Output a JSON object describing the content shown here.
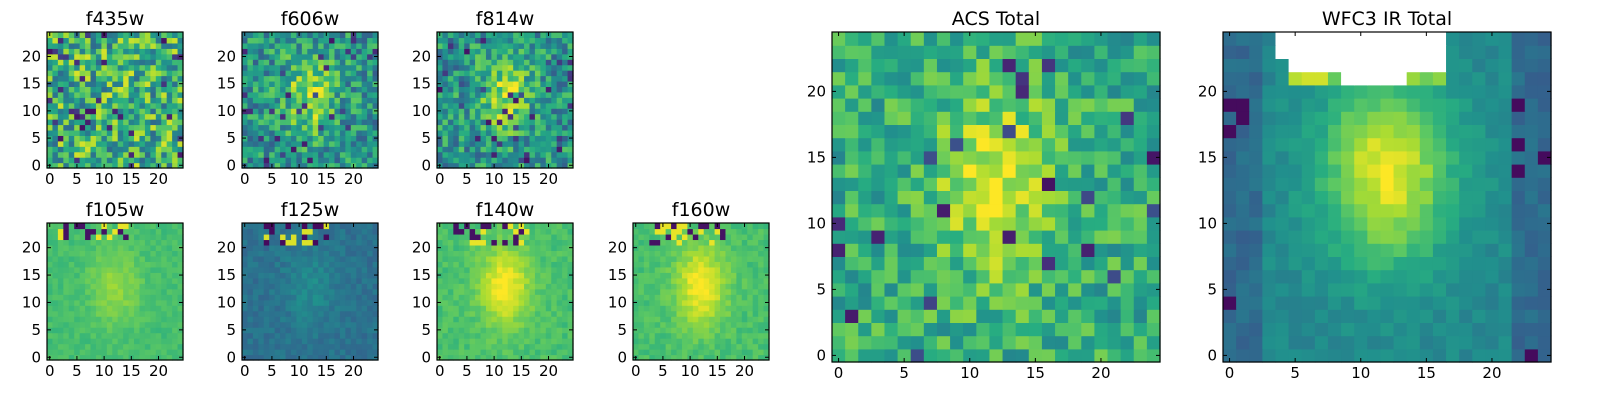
{
  "figure": {
    "background": "#ffffff",
    "colormap": "viridis"
  },
  "chart_data": [
    {
      "type": "heatmap",
      "title": "f435w",
      "xticks": [
        "0",
        "5",
        "10",
        "15",
        "20"
      ],
      "yticks": [
        "0",
        "5",
        "10",
        "15",
        "20"
      ],
      "xlim": [
        -0.5,
        24.5
      ],
      "ylim": [
        -0.5,
        24.5
      ],
      "grid": false,
      "pattern": "noise",
      "seed": 11
    },
    {
      "type": "heatmap",
      "title": "f606w",
      "xticks": [
        "0",
        "5",
        "10",
        "15",
        "20"
      ],
      "yticks": [
        "0",
        "5",
        "10",
        "15",
        "20"
      ],
      "xlim": [
        -0.5,
        24.5
      ],
      "ylim": [
        -0.5,
        24.5
      ],
      "grid": false,
      "pattern": "noise-blob",
      "seed": 23
    },
    {
      "type": "heatmap",
      "title": "f814w",
      "xticks": [
        "0",
        "5",
        "10",
        "15",
        "20"
      ],
      "yticks": [
        "0",
        "5",
        "10",
        "15",
        "20"
      ],
      "xlim": [
        -0.5,
        24.5
      ],
      "ylim": [
        -0.5,
        24.5
      ],
      "grid": false,
      "pattern": "noise-blob",
      "seed": 37
    },
    {
      "type": "heatmap",
      "title": "f105w",
      "xticks": [
        "0",
        "5",
        "10",
        "15",
        "20"
      ],
      "yticks": [
        "0",
        "5",
        "10",
        "15",
        "20"
      ],
      "xlim": [
        -0.5,
        24.5
      ],
      "ylim": [
        -0.5,
        24.5
      ],
      "grid": false,
      "pattern": "smooth-top",
      "seed": 41
    },
    {
      "type": "heatmap",
      "title": "f125w",
      "xticks": [
        "0",
        "5",
        "10",
        "15",
        "20"
      ],
      "yticks": [
        "0",
        "5",
        "10",
        "15",
        "20"
      ],
      "xlim": [
        -0.5,
        24.5
      ],
      "ylim": [
        -0.5,
        24.5
      ],
      "grid": false,
      "pattern": "smooth-dark-top",
      "seed": 53
    },
    {
      "type": "heatmap",
      "title": "f140w",
      "xticks": [
        "0",
        "5",
        "10",
        "15",
        "20"
      ],
      "yticks": [
        "0",
        "5",
        "10",
        "15",
        "20"
      ],
      "xlim": [
        -0.5,
        24.5
      ],
      "ylim": [
        -0.5,
        24.5
      ],
      "grid": false,
      "pattern": "bright-blob-top",
      "seed": 67
    },
    {
      "type": "heatmap",
      "title": "f160w",
      "xticks": [
        "0",
        "5",
        "10",
        "15",
        "20"
      ],
      "yticks": [
        "0",
        "5",
        "10",
        "15",
        "20"
      ],
      "xlim": [
        -0.5,
        24.5
      ],
      "ylim": [
        -0.5,
        24.5
      ],
      "grid": false,
      "pattern": "bright-blob-top",
      "seed": 79
    },
    {
      "type": "heatmap",
      "title": "ACS Total",
      "xticks": [
        "0",
        "5",
        "10",
        "15",
        "20"
      ],
      "yticks": [
        "0",
        "5",
        "10",
        "15",
        "20"
      ],
      "xlim": [
        -0.5,
        24.5
      ],
      "ylim": [
        -0.5,
        24.5
      ],
      "grid": false,
      "pattern": "acs-total",
      "seed": 97
    },
    {
      "type": "heatmap",
      "title": "WFC3 IR Total",
      "xticks": [
        "0",
        "5",
        "10",
        "15",
        "20"
      ],
      "yticks": [
        "0",
        "5",
        "10",
        "15",
        "20"
      ],
      "xlim": [
        -0.5,
        24.5
      ],
      "ylim": [
        -0.5,
        24.5
      ],
      "grid": false,
      "pattern": "ir-total",
      "seed": 113
    }
  ]
}
